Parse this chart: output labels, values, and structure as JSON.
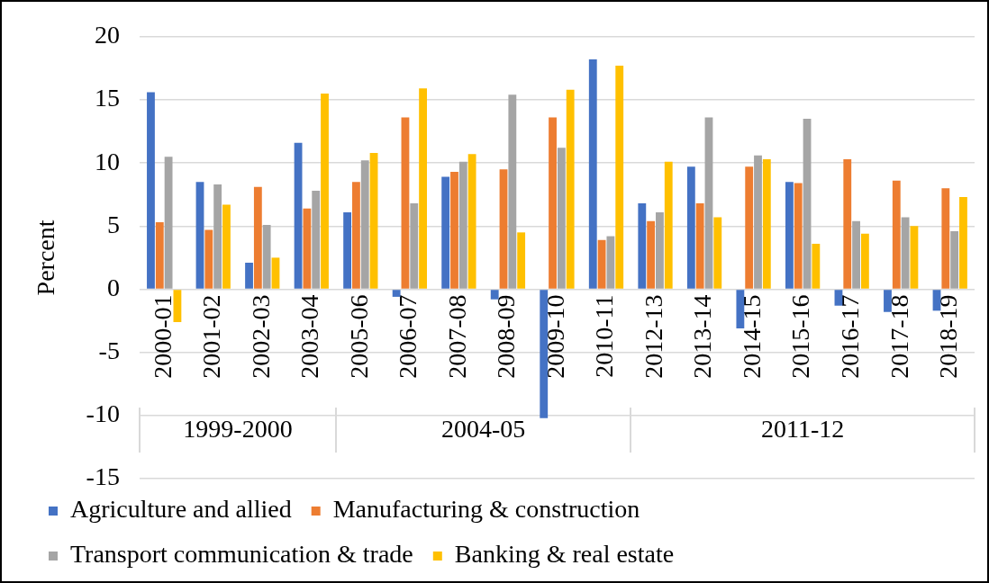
{
  "chart_data": {
    "type": "bar",
    "ylabel": "Percent",
    "categories": [
      "2000-01",
      "2001-02",
      "2002-03",
      "2003-04",
      "2005-06",
      "2006-07",
      "2007-08",
      "2008-09",
      "2009-10",
      "2010-11",
      "2012-13",
      "2013-14",
      "2014-15",
      "2015-16",
      "2016-17",
      "2017-18",
      "2018-19"
    ],
    "series": [
      {
        "name": "Agriculture and allied",
        "color": "#4472c4",
        "values": [
          15.6,
          8.5,
          2.1,
          11.6,
          6.1,
          -0.6,
          8.9,
          -0.8,
          -10.2,
          18.2,
          6.8,
          9.7,
          -3.1,
          8.5,
          -1.3,
          -1.8,
          -1.7
        ]
      },
      {
        "name": "Manufacturing & construction",
        "color": "#ed7d31",
        "values": [
          5.3,
          4.7,
          8.1,
          6.4,
          8.5,
          13.6,
          9.3,
          9.5,
          13.6,
          3.9,
          5.4,
          6.8,
          9.7,
          8.4,
          10.3,
          8.6,
          8.0
        ]
      },
      {
        "name": "Transport communication & trade",
        "color": "#a5a5a5",
        "values": [
          10.5,
          8.3,
          5.1,
          7.8,
          10.2,
          6.8,
          10.1,
          15.4,
          11.2,
          4.2,
          6.1,
          13.6,
          10.6,
          13.5,
          5.4,
          5.7,
          4.6
        ]
      },
      {
        "name": "Banking & real estate",
        "color": "#ffc000",
        "values": [
          -2.6,
          6.7,
          2.5,
          15.5,
          10.8,
          15.9,
          10.7,
          4.5,
          15.8,
          17.7,
          10.1,
          5.7,
          10.3,
          3.6,
          4.4,
          5.0,
          7.3
        ]
      }
    ],
    "ylim": [
      -15,
      20
    ],
    "yticks": [
      -15,
      -10,
      -5,
      0,
      5,
      10,
      15,
      20
    ],
    "grid": "y",
    "legend": "bottom",
    "annotations": [
      "1999-2000",
      "2004-05",
      "2011-12"
    ]
  }
}
